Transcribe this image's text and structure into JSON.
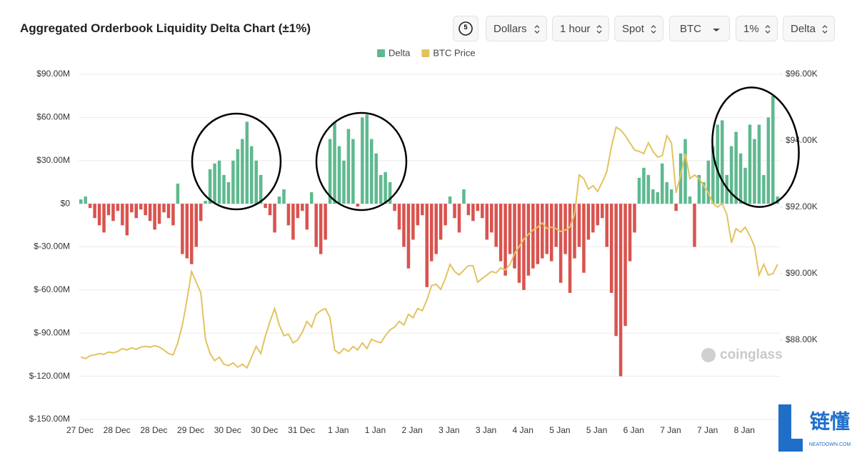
{
  "header": {
    "title": "Aggregated Orderbook Liquidity Delta Chart (±1%)",
    "refresh": "5",
    "controls": [
      "Dollars",
      "1 hour",
      "Spot",
      "BTC",
      "1%",
      "Delta"
    ]
  },
  "watermarks": {
    "brand": "coinglass",
    "logo_text": "链懂",
    "logo_sub": "NEATDOWN.COM"
  },
  "chart_data": {
    "type": "combo",
    "grid": true,
    "categories": [
      "27 Dec",
      null,
      null,
      null,
      null,
      null,
      null,
      null,
      "28 Dec",
      null,
      null,
      null,
      null,
      null,
      null,
      null,
      "28 Dec",
      null,
      null,
      null,
      null,
      null,
      null,
      null,
      "29 Dec",
      null,
      null,
      null,
      null,
      null,
      null,
      null,
      "30 Dec",
      null,
      null,
      null,
      null,
      null,
      null,
      null,
      "30 Dec",
      null,
      null,
      null,
      null,
      null,
      null,
      null,
      "31 Dec",
      null,
      null,
      null,
      null,
      null,
      null,
      null,
      "1 Jan",
      null,
      null,
      null,
      null,
      null,
      null,
      null,
      "1 Jan",
      null,
      null,
      null,
      null,
      null,
      null,
      null,
      "2 Jan",
      null,
      null,
      null,
      null,
      null,
      null,
      null,
      "3 Jan",
      null,
      null,
      null,
      null,
      null,
      null,
      null,
      "3 Jan",
      null,
      null,
      null,
      null,
      null,
      null,
      null,
      "4 Jan",
      null,
      null,
      null,
      null,
      null,
      null,
      null,
      "5 Jan",
      null,
      null,
      null,
      null,
      null,
      null,
      null,
      "5 Jan",
      null,
      null,
      null,
      null,
      null,
      null,
      null,
      "6 Jan",
      null,
      null,
      null,
      null,
      null,
      null,
      null,
      "7 Jan",
      null,
      null,
      null,
      null,
      null,
      null,
      null,
      "7 Jan",
      null,
      null,
      null,
      null,
      null,
      null,
      null,
      "8 Jan",
      null,
      null,
      null,
      null,
      null,
      null,
      null
    ],
    "ylim": [
      -150,
      90
    ],
    "yticks": [
      {
        "value": 90,
        "label": "$90.00M"
      },
      {
        "value": 60,
        "label": "$60.00M"
      },
      {
        "value": 30,
        "label": "$30.00M"
      },
      {
        "value": 0,
        "label": "$0"
      },
      {
        "value": -30,
        "label": "$-30.00M"
      },
      {
        "value": -60,
        "label": "$-60.00M"
      },
      {
        "value": -90,
        "label": "$-90.00M"
      },
      {
        "value": -120,
        "label": "$-120.00M"
      },
      {
        "value": -150,
        "label": "$-150.00M"
      }
    ],
    "y2lim": [
      85610,
      96000
    ],
    "y2ticks": [
      {
        "value": 96000,
        "label": "$96.00K"
      },
      {
        "value": 94000,
        "label": "$94.00K"
      },
      {
        "value": 92000,
        "label": "$92.00K"
      },
      {
        "value": 90000,
        "label": "$90.00K"
      },
      {
        "value": 88000,
        "label": "$88.00K"
      }
    ],
    "series": [
      {
        "name": "Delta",
        "type": "bar",
        "color": "#5fb98f",
        "negative_color": "#d9534f",
        "values": [
          3,
          5,
          -3,
          -10,
          -15,
          -20,
          -8,
          -12,
          -5,
          -15,
          -22,
          -6,
          -10,
          -4,
          -8,
          -12,
          -18,
          -14,
          -6,
          -10,
          -15,
          14,
          -35,
          -38,
          -42,
          -30,
          -12,
          2,
          24,
          28,
          30,
          20,
          15,
          30,
          38,
          45,
          57,
          40,
          30,
          20,
          -3,
          -8,
          -20,
          5,
          10,
          -15,
          -25,
          -10,
          -5,
          -18,
          8,
          -30,
          -35,
          -25,
          45,
          57,
          40,
          30,
          52,
          45,
          -2,
          60,
          62,
          45,
          35,
          20,
          22,
          15,
          -5,
          -18,
          -30,
          -45,
          -25,
          -15,
          -8,
          -58,
          -40,
          -35,
          -25,
          -15,
          5,
          -10,
          -20,
          10,
          -8,
          -12,
          -5,
          -10,
          -25,
          -20,
          -30,
          -40,
          -50,
          -35,
          -45,
          -55,
          -60,
          -50,
          -45,
          -42,
          -38,
          -35,
          -40,
          -30,
          -55,
          -35,
          -62,
          -38,
          -30,
          -48,
          -25,
          -20,
          -15,
          -10,
          -30,
          -62,
          -92,
          -120,
          -85,
          -40,
          -20,
          18,
          25,
          20,
          10,
          8,
          28,
          15,
          10,
          -5,
          35,
          45,
          5,
          -30,
          20,
          15,
          30,
          40,
          55,
          58,
          20,
          40,
          50,
          35,
          25,
          55,
          45,
          55,
          20,
          60,
          75,
          5
        ]
      },
      {
        "name": "BTC Price",
        "type": "line",
        "axis": "y2",
        "color": "#e3c35f",
        "values": [
          87486,
          87443,
          87529,
          87550,
          87593,
          87572,
          87636,
          87615,
          87658,
          87744,
          87701,
          87765,
          87722,
          87787,
          87808,
          87787,
          87830,
          87787,
          87701,
          87593,
          87550,
          87916,
          88453,
          89206,
          90066,
          89743,
          89421,
          88023,
          87593,
          87378,
          87486,
          87271,
          87228,
          87314,
          87185,
          87271,
          87163,
          87486,
          87808,
          87593,
          88131,
          88561,
          88948,
          88453,
          88131,
          88174,
          87916,
          88002,
          88238,
          88561,
          88389,
          88776,
          88883,
          88948,
          88668,
          87701,
          87593,
          87744,
          87658,
          87808,
          87701,
          87916,
          87744,
          88023,
          87959,
          87916,
          88131,
          88303,
          88389,
          88561,
          88453,
          88776,
          88668,
          88948,
          88883,
          89206,
          89636,
          89679,
          89528,
          89851,
          90281,
          90066,
          89958,
          90109,
          90238,
          90238,
          89743,
          89851,
          89958,
          90066,
          90023,
          90173,
          90109,
          90281,
          90603,
          90818,
          91033,
          91184,
          91313,
          91399,
          91528,
          91356,
          91399,
          91356,
          91270,
          91313,
          91399,
          91786,
          92968,
          92861,
          92538,
          92646,
          92474,
          92753,
          93076,
          93828,
          94409,
          94323,
          94151,
          93936,
          93721,
          93678,
          93613,
          93936,
          93678,
          93506,
          93549,
          94151,
          93936,
          92431,
          92968,
          93613,
          92861,
          92968,
          92861,
          92646,
          92431,
          92108,
          92001,
          92108,
          91786,
          90926,
          91356,
          91248,
          91399,
          91141,
          90818,
          89958,
          90281,
          89958,
          90001,
          90281
        ]
      }
    ]
  }
}
